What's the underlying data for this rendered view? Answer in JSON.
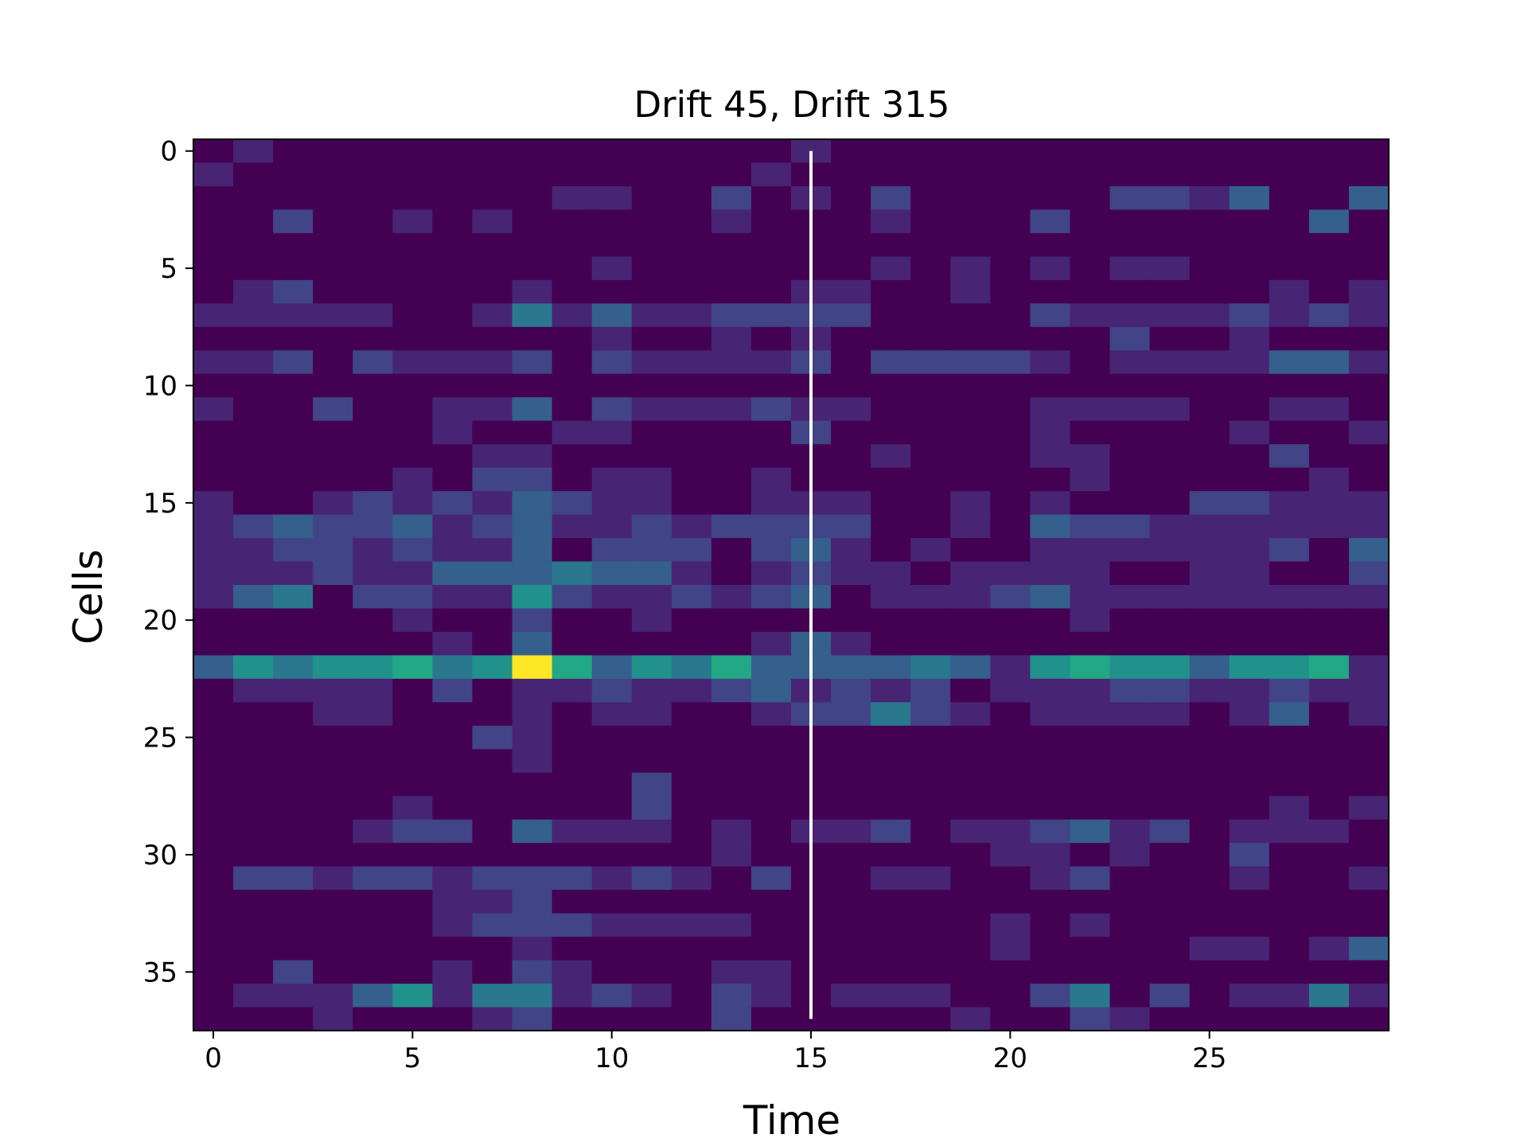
{
  "chart_data": {
    "type": "heatmap",
    "title": "Drift 45, Drift 315",
    "xlabel": "Time",
    "ylabel": "Cells",
    "colormap": "viridis",
    "x_range": [
      -0.5,
      29.5
    ],
    "y_range": [
      -0.5,
      37.5
    ],
    "y_inverted": true,
    "x_ticks": [
      0,
      5,
      10,
      15,
      20,
      25
    ],
    "y_ticks": [
      0,
      5,
      10,
      15,
      20,
      25,
      30,
      35
    ],
    "marker_line": {
      "x": 15,
      "color": "#ffffff"
    },
    "n_cols": 30,
    "vmax": 10,
    "matrix": [
      [
        0,
        1,
        0,
        0,
        0,
        0,
        0,
        0,
        0,
        0,
        0,
        0,
        0,
        0,
        0,
        1,
        0,
        0,
        0,
        0,
        0,
        0,
        0,
        0,
        0,
        0,
        0,
        0,
        0,
        0
      ],
      [
        1,
        0,
        0,
        0,
        0,
        0,
        0,
        0,
        0,
        0,
        0,
        0,
        0,
        0,
        1,
        0,
        0,
        0,
        0,
        0,
        0,
        0,
        0,
        0,
        0,
        0,
        0,
        0,
        0,
        0
      ],
      [
        0,
        0,
        0,
        0,
        0,
        0,
        0,
        0,
        0,
        1,
        1,
        0,
        0,
        2,
        0,
        1,
        0,
        2,
        0,
        0,
        0,
        0,
        0,
        2,
        2,
        1,
        3,
        0,
        0,
        3
      ],
      [
        0,
        0,
        2,
        0,
        0,
        1,
        0,
        1,
        0,
        0,
        0,
        0,
        0,
        1,
        0,
        0,
        0,
        1,
        0,
        0,
        0,
        2,
        0,
        0,
        0,
        0,
        0,
        0,
        3,
        0
      ],
      [
        0,
        0,
        0,
        0,
        0,
        0,
        0,
        0,
        0,
        0,
        0,
        0,
        0,
        0,
        0,
        0,
        0,
        0,
        0,
        0,
        0,
        0,
        0,
        0,
        0,
        0,
        0,
        0,
        0,
        0
      ],
      [
        0,
        0,
        0,
        0,
        0,
        0,
        0,
        0,
        0,
        0,
        1,
        0,
        0,
        0,
        0,
        0,
        0,
        1,
        0,
        1,
        0,
        1,
        0,
        1,
        1,
        0,
        0,
        0,
        0,
        0
      ],
      [
        0,
        1,
        2,
        0,
        0,
        0,
        0,
        0,
        1,
        0,
        0,
        0,
        0,
        0,
        0,
        1,
        1,
        0,
        0,
        1,
        0,
        0,
        0,
        0,
        0,
        0,
        0,
        1,
        0,
        1
      ],
      [
        1,
        1,
        1,
        1,
        1,
        0,
        0,
        1,
        4,
        1,
        3,
        1,
        1,
        2,
        2,
        2,
        2,
        0,
        0,
        0,
        0,
        2,
        1,
        1,
        1,
        1,
        2,
        1,
        2,
        1
      ],
      [
        0,
        0,
        0,
        0,
        0,
        0,
        0,
        0,
        0,
        0,
        1,
        0,
        0,
        1,
        0,
        1,
        0,
        0,
        0,
        0,
        0,
        0,
        0,
        2,
        0,
        0,
        1,
        0,
        0,
        0
      ],
      [
        1,
        1,
        2,
        0,
        2,
        1,
        1,
        1,
        2,
        0,
        2,
        1,
        1,
        1,
        1,
        2,
        0,
        2,
        2,
        2,
        2,
        1,
        0,
        1,
        1,
        1,
        1,
        3,
        3,
        1
      ],
      [
        0,
        0,
        0,
        0,
        0,
        0,
        0,
        0,
        0,
        0,
        0,
        0,
        0,
        0,
        0,
        0,
        0,
        0,
        0,
        0,
        0,
        0,
        0,
        0,
        0,
        0,
        0,
        0,
        0,
        0
      ],
      [
        1,
        0,
        0,
        2,
        0,
        0,
        1,
        1,
        3,
        0,
        2,
        1,
        1,
        1,
        2,
        1,
        1,
        0,
        0,
        0,
        0,
        1,
        1,
        1,
        1,
        0,
        0,
        1,
        1,
        0
      ],
      [
        0,
        0,
        0,
        0,
        0,
        0,
        1,
        0,
        0,
        1,
        1,
        0,
        0,
        0,
        0,
        2,
        0,
        0,
        0,
        0,
        0,
        1,
        0,
        0,
        0,
        0,
        1,
        0,
        0,
        1
      ],
      [
        0,
        0,
        0,
        0,
        0,
        0,
        0,
        1,
        1,
        0,
        0,
        0,
        0,
        0,
        0,
        0,
        0,
        1,
        0,
        0,
        0,
        1,
        1,
        0,
        0,
        0,
        0,
        2,
        0,
        0
      ],
      [
        0,
        0,
        0,
        0,
        0,
        1,
        0,
        2,
        2,
        0,
        1,
        1,
        0,
        0,
        1,
        0,
        0,
        0,
        0,
        0,
        0,
        0,
        1,
        0,
        0,
        0,
        0,
        0,
        1,
        0
      ],
      [
        1,
        0,
        0,
        1,
        2,
        1,
        2,
        1,
        3,
        2,
        1,
        1,
        0,
        0,
        1,
        1,
        1,
        0,
        0,
        1,
        0,
        1,
        0,
        0,
        0,
        2,
        2,
        1,
        1,
        1
      ],
      [
        1,
        2,
        3,
        2,
        2,
        3,
        1,
        2,
        3,
        1,
        1,
        2,
        1,
        2,
        2,
        2,
        2,
        0,
        0,
        1,
        0,
        3,
        2,
        2,
        1,
        1,
        1,
        1,
        1,
        1
      ],
      [
        1,
        1,
        2,
        2,
        1,
        2,
        1,
        1,
        3,
        0,
        2,
        2,
        2,
        0,
        2,
        3,
        1,
        0,
        1,
        0,
        0,
        1,
        1,
        1,
        1,
        1,
        1,
        2,
        0,
        3
      ],
      [
        1,
        1,
        1,
        2,
        1,
        1,
        3,
        3,
        3,
        4,
        3,
        3,
        1,
        0,
        1,
        2,
        1,
        1,
        0,
        1,
        1,
        1,
        1,
        0,
        0,
        1,
        1,
        0,
        0,
        2
      ],
      [
        1,
        3,
        4,
        0,
        2,
        2,
        1,
        1,
        5,
        2,
        1,
        1,
        2,
        1,
        2,
        3,
        0,
        1,
        1,
        1,
        2,
        3,
        1,
        1,
        1,
        1,
        1,
        1,
        1,
        1
      ],
      [
        0,
        0,
        0,
        0,
        0,
        1,
        0,
        0,
        2,
        0,
        0,
        1,
        0,
        0,
        0,
        0,
        0,
        0,
        0,
        0,
        0,
        0,
        1,
        0,
        0,
        0,
        0,
        0,
        0,
        0
      ],
      [
        0,
        0,
        0,
        0,
        0,
        0,
        1,
        0,
        3,
        0,
        0,
        0,
        0,
        0,
        1,
        3,
        1,
        0,
        0,
        0,
        0,
        0,
        0,
        0,
        0,
        0,
        0,
        0,
        0,
        0
      ],
      [
        3,
        5,
        4,
        5,
        5,
        6,
        4,
        5,
        10,
        6,
        3,
        5,
        4,
        6,
        3,
        3,
        3,
        3,
        4,
        3,
        1,
        5,
        6,
        5,
        5,
        3,
        5,
        5,
        6,
        1
      ],
      [
        0,
        1,
        1,
        1,
        1,
        0,
        2,
        0,
        1,
        1,
        2,
        1,
        1,
        2,
        3,
        1,
        2,
        1,
        2,
        0,
        1,
        1,
        1,
        2,
        2,
        1,
        1,
        2,
        1,
        1
      ],
      [
        0,
        0,
        0,
        1,
        1,
        0,
        0,
        0,
        1,
        0,
        1,
        1,
        0,
        0,
        1,
        2,
        2,
        4,
        2,
        1,
        0,
        1,
        1,
        1,
        1,
        0,
        1,
        3,
        0,
        1
      ],
      [
        0,
        0,
        0,
        0,
        0,
        0,
        0,
        2,
        1,
        0,
        0,
        0,
        0,
        0,
        0,
        0,
        0,
        0,
        0,
        0,
        0,
        0,
        0,
        0,
        0,
        0,
        0,
        0,
        0,
        0
      ],
      [
        0,
        0,
        0,
        0,
        0,
        0,
        0,
        0,
        1,
        0,
        0,
        0,
        0,
        0,
        0,
        0,
        0,
        0,
        0,
        0,
        0,
        0,
        0,
        0,
        0,
        0,
        0,
        0,
        0,
        0
      ],
      [
        0,
        0,
        0,
        0,
        0,
        0,
        0,
        0,
        0,
        0,
        0,
        2,
        0,
        0,
        0,
        0,
        0,
        0,
        0,
        0,
        0,
        0,
        0,
        0,
        0,
        0,
        0,
        0,
        0,
        0
      ],
      [
        0,
        0,
        0,
        0,
        0,
        1,
        0,
        0,
        0,
        0,
        0,
        2,
        0,
        0,
        0,
        0,
        0,
        0,
        0,
        0,
        0,
        0,
        0,
        0,
        0,
        0,
        0,
        1,
        0,
        1
      ],
      [
        0,
        0,
        0,
        0,
        1,
        2,
        2,
        0,
        3,
        1,
        1,
        1,
        0,
        1,
        0,
        1,
        1,
        2,
        0,
        1,
        1,
        2,
        3,
        1,
        2,
        0,
        1,
        1,
        1,
        0
      ],
      [
        0,
        0,
        0,
        0,
        0,
        0,
        0,
        0,
        0,
        0,
        0,
        0,
        0,
        1,
        0,
        0,
        0,
        0,
        0,
        0,
        1,
        1,
        0,
        1,
        0,
        0,
        2,
        0,
        0,
        0
      ],
      [
        0,
        2,
        2,
        1,
        2,
        2,
        1,
        2,
        2,
        2,
        1,
        2,
        1,
        0,
        2,
        0,
        0,
        1,
        1,
        0,
        0,
        1,
        2,
        0,
        0,
        0,
        1,
        0,
        0,
        1
      ],
      [
        0,
        0,
        0,
        0,
        0,
        0,
        1,
        1,
        2,
        0,
        0,
        0,
        0,
        0,
        0,
        0,
        0,
        0,
        0,
        0,
        0,
        0,
        0,
        0,
        0,
        0,
        0,
        0,
        0,
        0
      ],
      [
        0,
        0,
        0,
        0,
        0,
        0,
        1,
        2,
        2,
        2,
        1,
        1,
        1,
        1,
        0,
        0,
        0,
        0,
        0,
        0,
        1,
        0,
        1,
        0,
        0,
        0,
        0,
        0,
        0,
        0
      ],
      [
        0,
        0,
        0,
        0,
        0,
        0,
        0,
        0,
        1,
        0,
        0,
        0,
        0,
        0,
        0,
        0,
        0,
        0,
        0,
        0,
        1,
        0,
        0,
        0,
        0,
        1,
        1,
        0,
        1,
        3
      ],
      [
        0,
        0,
        2,
        0,
        0,
        0,
        1,
        0,
        2,
        1,
        0,
        0,
        0,
        1,
        1,
        0,
        0,
        0,
        0,
        0,
        0,
        0,
        0,
        0,
        0,
        0,
        0,
        0,
        0,
        0
      ],
      [
        0,
        1,
        1,
        1,
        3,
        5,
        1,
        4,
        4,
        1,
        2,
        1,
        0,
        2,
        1,
        0,
        1,
        1,
        1,
        0,
        0,
        2,
        4,
        0,
        2,
        0,
        1,
        1,
        4,
        1
      ],
      [
        0,
        0,
        0,
        1,
        0,
        0,
        0,
        1,
        2,
        0,
        0,
        0,
        0,
        2,
        0,
        0,
        0,
        0,
        0,
        1,
        0,
        0,
        2,
        1,
        0,
        0,
        0,
        0,
        0,
        0
      ]
    ]
  }
}
